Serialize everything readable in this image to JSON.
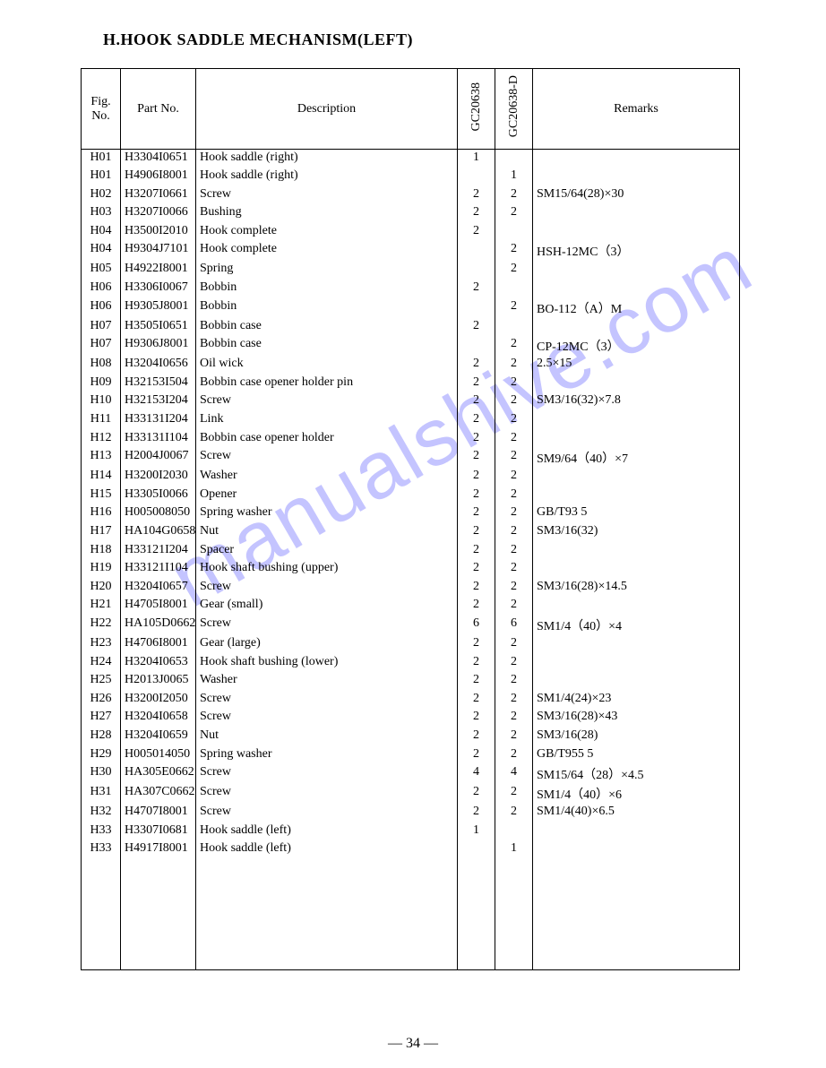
{
  "title": "H.HOOK SADDLE MECHANISM(LEFT)",
  "page_number": "— 34 —",
  "watermark": "manualshive.com",
  "headers": {
    "fig": "Fig.\nNo.",
    "part": "Part No.",
    "desc": "Description",
    "q1": "GC20638",
    "q2": "GC20638-D",
    "rem": "Remarks"
  },
  "rows": [
    {
      "fig": "H01",
      "part": "H3304I0651",
      "desc": "Hook saddle (right)",
      "q1": "1",
      "q2": "",
      "rem": ""
    },
    {
      "fig": "H01",
      "part": "H4906I8001",
      "desc": "Hook saddle (right)",
      "q1": "",
      "q2": "1",
      "rem": ""
    },
    {
      "fig": "H02",
      "part": "H3207I0661",
      "desc": "Screw",
      "q1": "2",
      "q2": "2",
      "rem": "SM15/64(28)×30"
    },
    {
      "fig": "H03",
      "part": "H3207I0066",
      "desc": "Bushing",
      "q1": "2",
      "q2": "2",
      "rem": ""
    },
    {
      "fig": "H04",
      "part": "H3500I2010",
      "desc": "Hook complete",
      "q1": "2",
      "q2": "",
      "rem": ""
    },
    {
      "fig": "H04",
      "part": "H9304J7101",
      "desc": "Hook complete",
      "q1": "",
      "q2": "2",
      "rem": "HSH-12MC（3）"
    },
    {
      "fig": "H05",
      "part": "H4922I8001",
      "desc": "Spring",
      "q1": "",
      "q2": "2",
      "rem": ""
    },
    {
      "fig": "H06",
      "part": "H3306I0067",
      "desc": "Bobbin",
      "q1": "2",
      "q2": "",
      "rem": ""
    },
    {
      "fig": "H06",
      "part": "H9305J8001",
      "desc": "Bobbin",
      "q1": "",
      "q2": "2",
      "rem": "BO-112（A）M"
    },
    {
      "fig": "H07",
      "part": "H3505I0651",
      "desc": "Bobbin case",
      "q1": "2",
      "q2": "",
      "rem": ""
    },
    {
      "fig": "H07",
      "part": "H9306J8001",
      "desc": "Bobbin case",
      "q1": "",
      "q2": "2",
      "rem": "CP-12MC（3）"
    },
    {
      "fig": "H08",
      "part": "H3204I0656",
      "desc": "Oil wick",
      "q1": "2",
      "q2": "2",
      "rem": "2.5×15"
    },
    {
      "fig": "H09",
      "part": "H32153I504",
      "desc": "Bobbin case opener holder pin",
      "q1": "2",
      "q2": "2",
      "rem": ""
    },
    {
      "fig": "H10",
      "part": "H32153I204",
      "desc": "Screw",
      "q1": "2",
      "q2": "2",
      "rem": "SM3/16(32)×7.8"
    },
    {
      "fig": "H11",
      "part": "H33131I204",
      "desc": "Link",
      "q1": "2",
      "q2": "2",
      "rem": ""
    },
    {
      "fig": "H12",
      "part": "H33131I104",
      "desc": "Bobbin case opener holder",
      "q1": "2",
      "q2": "2",
      "rem": ""
    },
    {
      "fig": "H13",
      "part": "H2004J0067",
      "desc": "Screw",
      "q1": "2",
      "q2": "2",
      "rem": "SM9/64（40）×7"
    },
    {
      "fig": "H14",
      "part": "H3200I2030",
      "desc": "Washer",
      "q1": "2",
      "q2": "2",
      "rem": ""
    },
    {
      "fig": "H15",
      "part": "H3305I0066",
      "desc": "Opener",
      "q1": "2",
      "q2": "2",
      "rem": ""
    },
    {
      "fig": "H16",
      "part": "H005008050",
      "desc": "Spring washer",
      "q1": "2",
      "q2": "2",
      "rem": "GB/T93 5"
    },
    {
      "fig": "H17",
      "part": "HA104G0658",
      "desc": "Nut",
      "q1": "2",
      "q2": "2",
      "rem": "SM3/16(32)"
    },
    {
      "fig": "H18",
      "part": "H33121I204",
      "desc": "Spacer",
      "q1": "2",
      "q2": "2",
      "rem": ""
    },
    {
      "fig": "H19",
      "part": "H33121I104",
      "desc": "Hook shaft bushing (upper)",
      "q1": "2",
      "q2": "2",
      "rem": ""
    },
    {
      "fig": "H20",
      "part": "H3204I0657",
      "desc": "Screw",
      "q1": "2",
      "q2": "2",
      "rem": "SM3/16(28)×14.5"
    },
    {
      "fig": "H21",
      "part": "H4705I8001",
      "desc": "Gear (small)",
      "q1": "2",
      "q2": "2",
      "rem": ""
    },
    {
      "fig": "H22",
      "part": "HA105D0662",
      "desc": "Screw",
      "q1": "6",
      "q2": "6",
      "rem": "SM1/4（40）×4"
    },
    {
      "fig": "H23",
      "part": "H4706I8001",
      "desc": "Gear (large)",
      "q1": "2",
      "q2": "2",
      "rem": ""
    },
    {
      "fig": "H24",
      "part": "H3204I0653",
      "desc": "Hook shaft bushing (lower)",
      "q1": "2",
      "q2": "2",
      "rem": ""
    },
    {
      "fig": "H25",
      "part": "H2013J0065",
      "desc": "Washer",
      "q1": "2",
      "q2": "2",
      "rem": ""
    },
    {
      "fig": "H26",
      "part": "H3200I2050",
      "desc": "Screw",
      "q1": "2",
      "q2": "2",
      "rem": "SM1/4(24)×23"
    },
    {
      "fig": "H27",
      "part": "H3204I0658",
      "desc": "Screw",
      "q1": "2",
      "q2": "2",
      "rem": "SM3/16(28)×43"
    },
    {
      "fig": "H28",
      "part": "H3204I0659",
      "desc": "Nut",
      "q1": "2",
      "q2": "2",
      "rem": "SM3/16(28)"
    },
    {
      "fig": "H29",
      "part": "H005014050",
      "desc": "Spring washer",
      "q1": "2",
      "q2": "2",
      "rem": "GB/T955 5"
    },
    {
      "fig": "H30",
      "part": "HA305E0662",
      "desc": "Screw",
      "q1": "4",
      "q2": "4",
      "rem": "SM15/64（28）×4.5"
    },
    {
      "fig": "H31",
      "part": "HA307C0662",
      "desc": "Screw",
      "q1": "2",
      "q2": "2",
      "rem": "SM1/4（40）×6"
    },
    {
      "fig": "H32",
      "part": "H4707I8001",
      "desc": "Screw",
      "q1": "2",
      "q2": "2",
      "rem": "SM1/4(40)×6.5"
    },
    {
      "fig": "H33",
      "part": "H3307I0681",
      "desc": "Hook saddle (left)",
      "q1": "1",
      "q2": "",
      "rem": ""
    },
    {
      "fig": "H33",
      "part": "H4917I8001",
      "desc": "Hook saddle (left)",
      "q1": "",
      "q2": "1",
      "rem": ""
    }
  ],
  "blank_rows": 6
}
